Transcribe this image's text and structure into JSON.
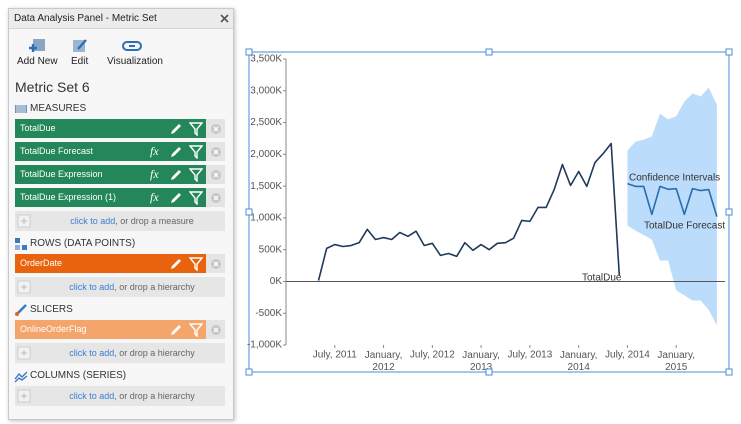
{
  "panel": {
    "title": "Data Analysis Panel - Metric Set",
    "toolbar": [
      "Add New",
      "Edit",
      "Visualization"
    ],
    "metric_set": "Metric Set 6",
    "sections": [
      {
        "label": "MEASURES",
        "color": "#23875a",
        "items": [
          {
            "label": "TotalDue",
            "formula": false
          },
          {
            "label": "TotalDue Forecast",
            "formula": true
          },
          {
            "label": "TotalDue Expression",
            "formula": true
          },
          {
            "label": "TotalDue Expression (1)",
            "formula": true
          }
        ],
        "add_link": "click to add",
        "add_hint": ", or drop a measure"
      },
      {
        "label": "ROWS (DATA POINTS)",
        "color": "#e9630f",
        "items": [
          {
            "label": "OrderDate",
            "formula": false
          }
        ],
        "add_link": "click to add",
        "add_hint": ", or drop a hierarchy"
      },
      {
        "label": "SLICERS",
        "color": "#f4a56c",
        "items": [
          {
            "label": "OnlineOrderFlag",
            "formula": false
          }
        ],
        "add_link": "click to add",
        "add_hint": ", or drop a hierarchy"
      },
      {
        "label": "COLUMNS (SERIES)",
        "color": "#23875a",
        "items": [],
        "add_link": "click to add",
        "add_hint": ", or drop a hierarchy"
      }
    ]
  },
  "icons": {
    "formula": "fx"
  },
  "chart_data": {
    "type": "line",
    "x": [
      "2011-05",
      "2011-06",
      "2011-07",
      "2011-08",
      "2011-09",
      "2011-10",
      "2011-11",
      "2011-12",
      "2012-01",
      "2012-02",
      "2012-03",
      "2012-04",
      "2012-05",
      "2012-06",
      "2012-07",
      "2012-08",
      "2012-09",
      "2012-10",
      "2012-11",
      "2012-12",
      "2013-01",
      "2013-02",
      "2013-03",
      "2013-04",
      "2013-05",
      "2013-06",
      "2013-07",
      "2013-08",
      "2013-09",
      "2013-10",
      "2013-11",
      "2013-12",
      "2014-01",
      "2014-02",
      "2014-03",
      "2014-04",
      "2014-05",
      "2014-06",
      "2014-07",
      "2014-08",
      "2014-09",
      "2014-10",
      "2014-11",
      "2014-12",
      "2015-01",
      "2015-02",
      "2015-03",
      "2015-04",
      "2015-05",
      "2015-06"
    ],
    "series": [
      {
        "name": "TotalDue",
        "color": "#1f3a5a",
        "values": [
          15,
          520,
          580,
          550,
          565,
          610,
          820,
          660,
          690,
          660,
          770,
          710,
          790,
          565,
          600,
          410,
          440,
          395,
          610,
          490,
          580,
          500,
          600,
          610,
          680,
          960,
          945,
          1165,
          1165,
          1450,
          1840,
          1510,
          1730,
          1495,
          1870,
          2010,
          2170,
          95,
          null,
          null,
          null,
          null,
          null,
          null,
          null,
          null,
          null,
          null,
          null,
          null
        ]
      },
      {
        "name": "TotalDue Forecast",
        "color": "#2b6cae",
        "values": [
          null,
          null,
          null,
          null,
          null,
          null,
          null,
          null,
          null,
          null,
          null,
          null,
          null,
          null,
          null,
          null,
          null,
          null,
          null,
          null,
          null,
          null,
          null,
          null,
          null,
          null,
          null,
          null,
          null,
          null,
          null,
          null,
          null,
          null,
          null,
          null,
          null,
          null,
          1540,
          1495,
          1495,
          1055,
          1495,
          1450,
          1460,
          1055,
          1460,
          1430,
          1445,
          1020
        ]
      }
    ],
    "band": {
      "name": "Confidence Intervals",
      "color": "#bcdcfb",
      "upper": [
        null,
        null,
        null,
        null,
        null,
        null,
        null,
        null,
        null,
        null,
        null,
        null,
        null,
        null,
        null,
        null,
        null,
        null,
        null,
        null,
        null,
        null,
        null,
        null,
        null,
        null,
        null,
        null,
        null,
        null,
        null,
        null,
        null,
        null,
        null,
        null,
        null,
        null,
        2060,
        2200,
        2230,
        2280,
        2640,
        2550,
        2600,
        2830,
        2960,
        2910,
        3050,
        2780
      ],
      "lower": [
        null,
        null,
        null,
        null,
        null,
        null,
        null,
        null,
        null,
        null,
        null,
        null,
        null,
        null,
        null,
        null,
        null,
        null,
        null,
        null,
        null,
        null,
        null,
        null,
        null,
        null,
        null,
        null,
        null,
        null,
        null,
        null,
        null,
        null,
        null,
        null,
        null,
        null,
        880,
        800,
        730,
        660,
        330,
        330,
        -140,
        -220,
        -300,
        -300,
        -450,
        -690
      ]
    },
    "xlim": [
      "2011-01",
      "2015-07"
    ],
    "xticks": [
      {
        "value": "2011-07",
        "label": "July, 2011"
      },
      {
        "value": "2012-01",
        "label": "January, 2012"
      },
      {
        "value": "2012-07",
        "label": "July, 2012"
      },
      {
        "value": "2013-01",
        "label": "January, 2013"
      },
      {
        "value": "2013-07",
        "label": "July, 2013"
      },
      {
        "value": "2014-01",
        "label": "January, 2014"
      },
      {
        "value": "2014-07",
        "label": "July, 2014"
      },
      {
        "value": "2015-01",
        "label": "January, 2015"
      }
    ],
    "ylim": [
      -1000,
      3500
    ],
    "yticks": [
      {
        "value": -1000,
        "label": "-1,000K"
      },
      {
        "value": -500,
        "label": "-500K"
      },
      {
        "value": 0,
        "label": "0K"
      },
      {
        "value": 500,
        "label": "500K"
      },
      {
        "value": 1000,
        "label": "1,000K"
      },
      {
        "value": 1500,
        "label": "1,500K"
      },
      {
        "value": 2000,
        "label": "2,000K"
      },
      {
        "value": 2500,
        "label": "2,500K"
      },
      {
        "value": 3000,
        "label": "3,000K"
      },
      {
        "value": 3500,
        "label": "3,500K"
      }
    ],
    "grid": false
  }
}
